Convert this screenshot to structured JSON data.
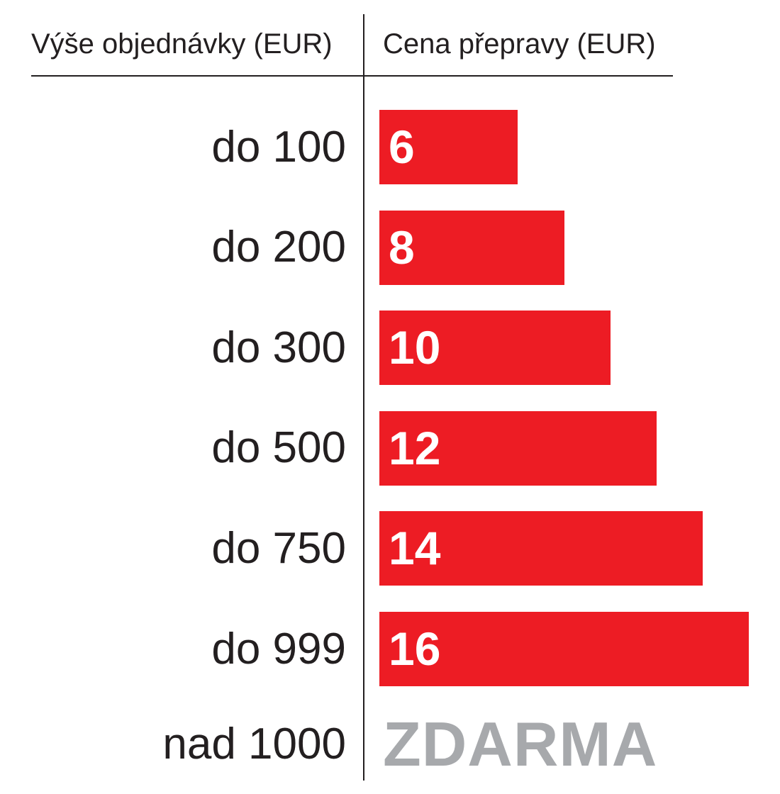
{
  "chart_data": {
    "type": "bar",
    "orientation": "horizontal",
    "title": "",
    "xlabel": "Cena přepravy (EUR)",
    "ylabel": "Výše objednávky (EUR)",
    "categories": [
      "do 100",
      "do 200",
      "do 300",
      "do 500",
      "do 750",
      "do 999"
    ],
    "values": [
      6,
      8,
      10,
      12,
      14,
      16
    ],
    "data_labels": [
      "6",
      "8",
      "10",
      "12",
      "14",
      "16"
    ],
    "xlim": [
      0,
      16
    ],
    "grid": false,
    "legend": "none",
    "extra_row": {
      "category": "nad 1000",
      "label": "ZDARMA"
    },
    "colors": {
      "bar": "#ed1c24",
      "bar_label": "#ffffff",
      "free_label": "#a7a9ac",
      "text": "#231f20"
    }
  }
}
